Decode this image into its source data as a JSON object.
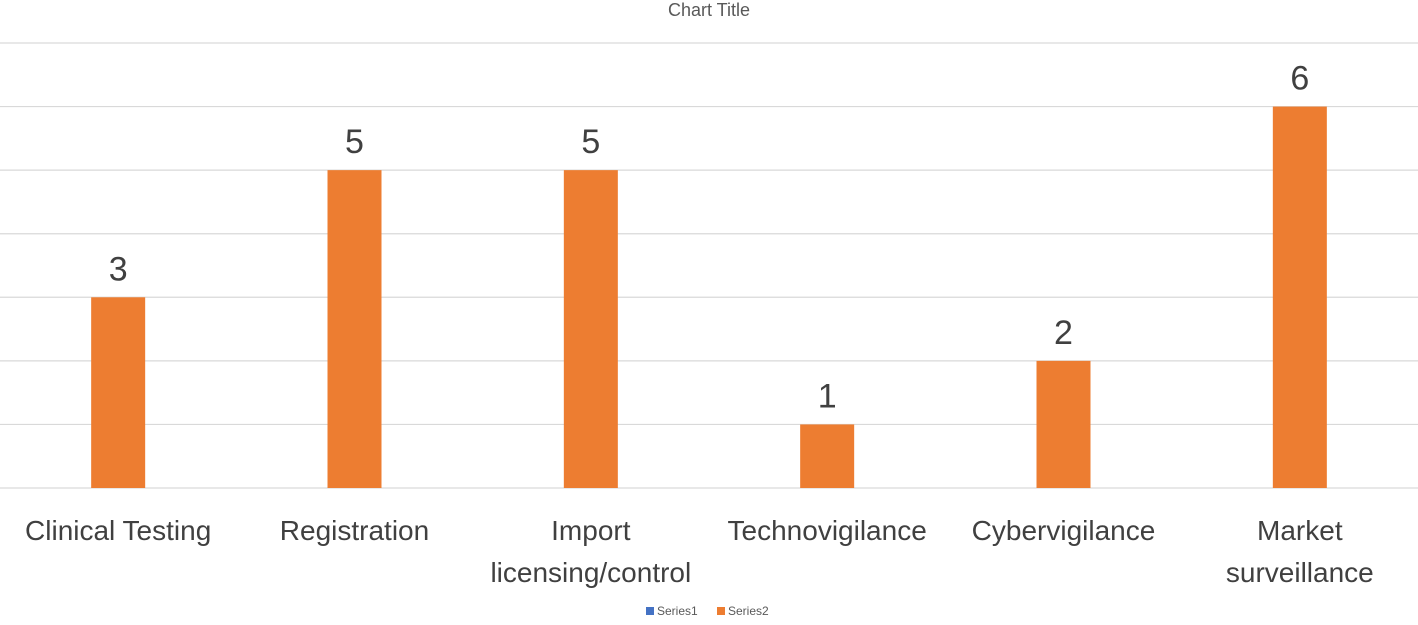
{
  "chart_data": {
    "type": "bar",
    "title": "Chart Title",
    "categories": [
      [
        "Clinical Testing"
      ],
      [
        "Registration"
      ],
      [
        "Import",
        "licensing/control"
      ],
      [
        "Technovigilance"
      ],
      [
        "Cybervigilance"
      ],
      [
        "Market",
        "surveillance"
      ]
    ],
    "series": [
      {
        "name": "Series1",
        "values": [
          null,
          null,
          null,
          null,
          null,
          null
        ],
        "color": "#4472C4"
      },
      {
        "name": "Series2",
        "values": [
          3,
          5,
          5,
          1,
          2,
          6
        ],
        "color": "#ED7D31"
      }
    ],
    "ylim": [
      0,
      7
    ],
    "grid": true,
    "legend_position": "bottom",
    "data_labels": true
  },
  "colors": {
    "gridline": "#d9d9d9",
    "text": "#404040",
    "title": "#595959"
  }
}
